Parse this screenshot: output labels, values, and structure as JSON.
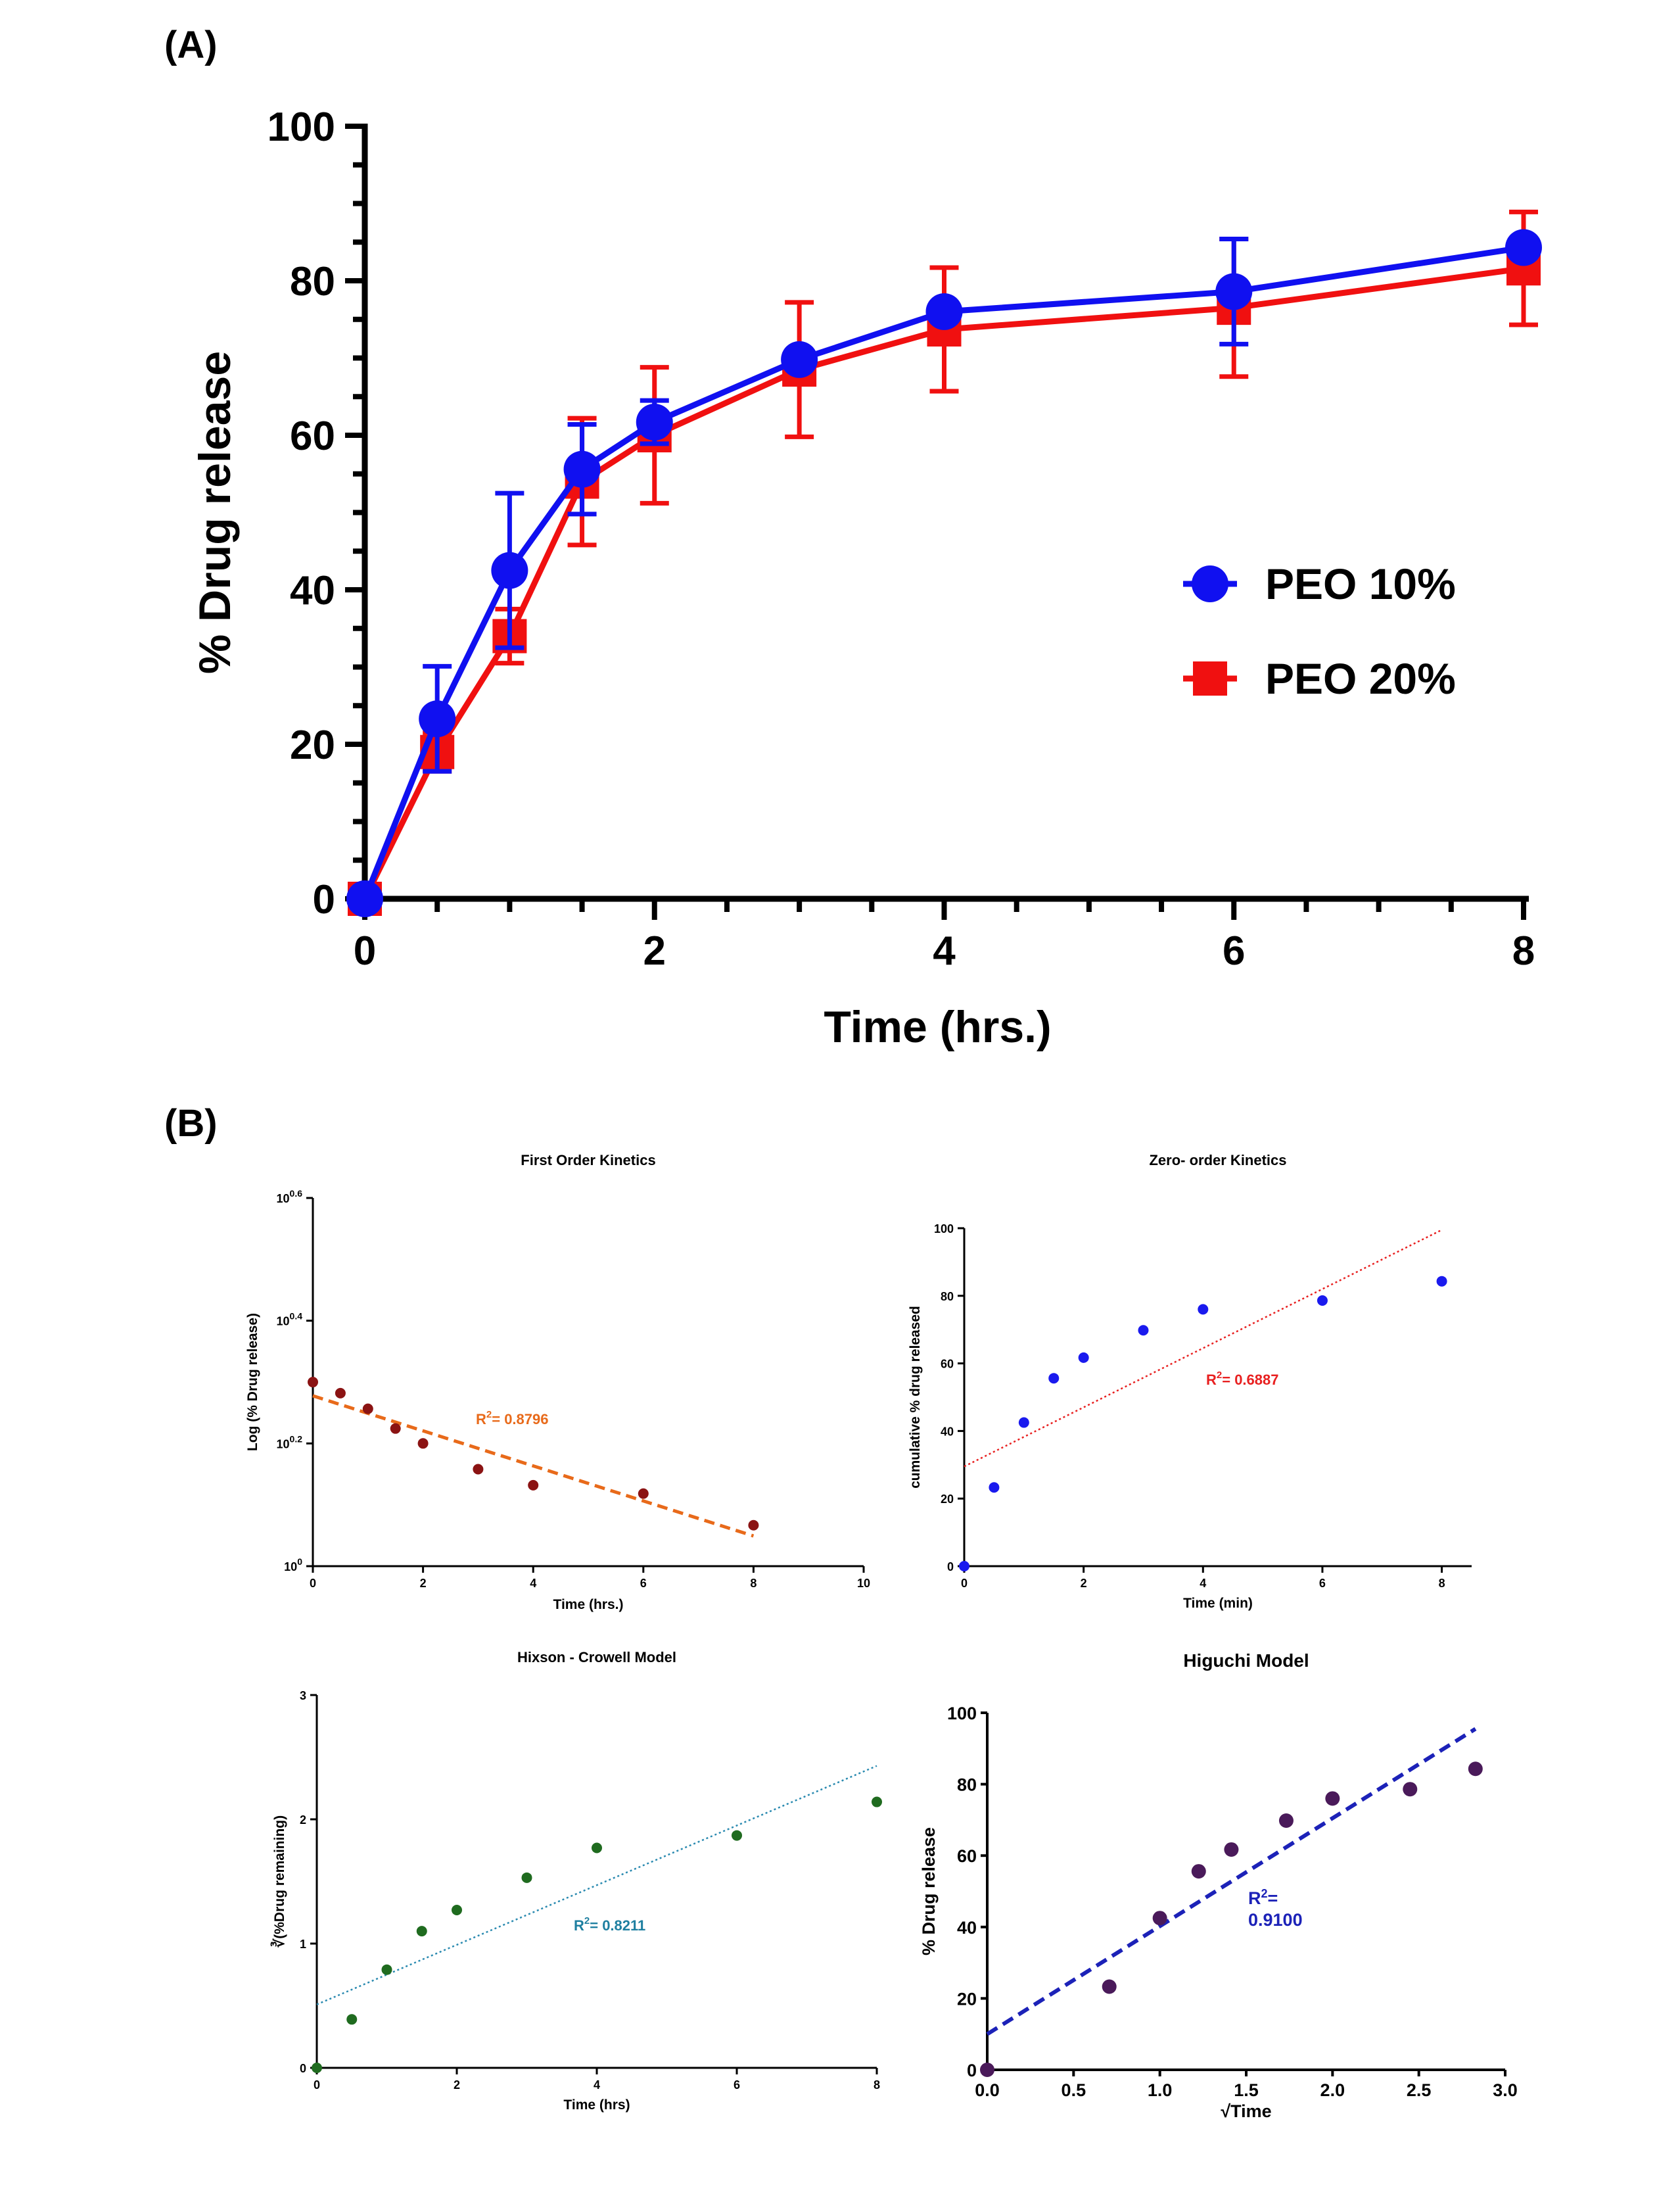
{
  "panel_labels": {
    "a": "(A)",
    "b": "(B)"
  },
  "chart_data": [
    {
      "id": "A",
      "type": "line",
      "xlabel": "Time (hrs.)",
      "ylabel": "% Drug release",
      "xlim": [
        0,
        8
      ],
      "ylim": [
        0,
        100
      ],
      "x_ticks": [
        "0",
        "2",
        "4",
        "6",
        "8"
      ],
      "y_ticks": [
        "0",
        "20",
        "40",
        "60",
        "80",
        "100"
      ],
      "legend_position": "right-middle",
      "x": [
        0,
        0.5,
        1,
        1.5,
        2,
        3,
        4,
        6,
        8
      ],
      "series": [
        {
          "name": "PEO 10%",
          "color": "#1010f0",
          "marker": "circle",
          "values": [
            0,
            23.3,
            42.5,
            55.6,
            61.7,
            69.8,
            76.0,
            78.6,
            84.3
          ],
          "error": [
            0,
            6.8,
            10,
            5.8,
            2.8,
            0,
            0,
            6.8,
            0
          ]
        },
        {
          "name": "PEO 20%",
          "color": "#f01010",
          "marker": "square",
          "values": [
            0,
            19.0,
            34.0,
            54.0,
            60.0,
            68.5,
            73.7,
            76.5,
            81.6
          ],
          "error": [
            0,
            2.5,
            3.5,
            8.2,
            8.8,
            8.7,
            8.0,
            8.9,
            7.3
          ]
        }
      ]
    },
    {
      "id": "B1",
      "type": "scatter",
      "title": "First Order Kinetics",
      "xlabel": "Time (hrs.)",
      "ylabel": "Log (% Drug release)",
      "xlim": [
        0,
        10
      ],
      "ylim_exponent": [
        0,
        0.6
      ],
      "log_y": true,
      "x_ticks": [
        "0",
        "2",
        "4",
        "6",
        "8",
        "10"
      ],
      "y_ticks": [
        {
          "base": "10",
          "exp": "0"
        },
        {
          "base": "10",
          "exp": "0.2"
        },
        {
          "base": "10",
          "exp": "0.4"
        },
        {
          "base": "10",
          "exp": "0.6"
        }
      ],
      "point_color": "#8b1313",
      "points": [
        {
          "x": 0,
          "y": 1.995
        },
        {
          "x": 0.5,
          "y": 1.914
        },
        {
          "x": 1,
          "y": 1.805
        },
        {
          "x": 1.5,
          "y": 1.676
        },
        {
          "x": 2,
          "y": 1.585
        },
        {
          "x": 3,
          "y": 1.439
        },
        {
          "x": 4,
          "y": 1.355
        },
        {
          "x": 6,
          "y": 1.313
        },
        {
          "x": 8,
          "y": 1.166
        }
      ],
      "fit": {
        "x1": 0,
        "y1": 1.895,
        "x2": 8,
        "y2": 1.12,
        "color": "#e86a1a",
        "style": "dashed"
      },
      "r2_label": {
        "prefix": "R",
        "sup": "2",
        "text": "= 0.8796",
        "color": "#e86a1a"
      }
    },
    {
      "id": "B2",
      "type": "scatter",
      "title": "Zero- order Kinetics",
      "xlabel": "Time (min)",
      "ylabel": "cumulative % drug released",
      "xlim": [
        0,
        8.5
      ],
      "ylim": [
        0,
        100
      ],
      "x_ticks": [
        "0",
        "2",
        "4",
        "6",
        "8"
      ],
      "y_ticks": [
        "0",
        "20",
        "40",
        "60",
        "80",
        "100"
      ],
      "point_color": "#1a1aee",
      "points": [
        {
          "x": 0,
          "y": 0
        },
        {
          "x": 0.5,
          "y": 23.3
        },
        {
          "x": 1,
          "y": 42.5
        },
        {
          "x": 1.5,
          "y": 55.6
        },
        {
          "x": 2,
          "y": 61.7
        },
        {
          "x": 3,
          "y": 69.8
        },
        {
          "x": 4,
          "y": 76.0
        },
        {
          "x": 6,
          "y": 78.6
        },
        {
          "x": 8,
          "y": 84.3
        }
      ],
      "fit": {
        "x1": 0,
        "y1": 29.5,
        "x2": 8,
        "y2": 99.5,
        "color": "#e82020",
        "style": "dotted"
      },
      "r2_label": {
        "prefix": "R",
        "sup": "2",
        "text": "= 0.6887",
        "color": "#e82020"
      }
    },
    {
      "id": "B3",
      "type": "scatter",
      "title": "Hixson - Crowell Model",
      "xlabel": "Time (hrs)",
      "ylabel": "∛(%Drug remaining)",
      "xlim": [
        0,
        8
      ],
      "ylim": [
        0,
        3
      ],
      "x_ticks": [
        "0",
        "2",
        "4",
        "6",
        "8"
      ],
      "y_ticks": [
        "0",
        "1",
        "2",
        "3"
      ],
      "point_color": "#1f6b1f",
      "points": [
        {
          "x": 0,
          "y": 0
        },
        {
          "x": 0.5,
          "y": 0.39
        },
        {
          "x": 1,
          "y": 0.79
        },
        {
          "x": 1.5,
          "y": 1.1
        },
        {
          "x": 2,
          "y": 1.27
        },
        {
          "x": 3,
          "y": 1.53
        },
        {
          "x": 4,
          "y": 1.77
        },
        {
          "x": 6,
          "y": 1.87
        },
        {
          "x": 8,
          "y": 2.14
        }
      ],
      "fit": {
        "x1": 0,
        "y1": 0.51,
        "x2": 8,
        "y2": 2.43,
        "color": "#2a8ab0",
        "style": "dotted"
      },
      "r2_label": {
        "prefix": "R",
        "sup": "2",
        "text": "= 0.8211",
        "color": "#1e7fa0"
      }
    },
    {
      "id": "B4",
      "type": "scatter",
      "title": "Higuchi Model",
      "xlabel": "√Time",
      "ylabel": "% Drug release",
      "xlim": [
        0,
        3
      ],
      "ylim": [
        0,
        100
      ],
      "x_ticks": [
        "0.0",
        "0.5",
        "1.0",
        "1.5",
        "2.0",
        "2.5",
        "3.0"
      ],
      "y_ticks": [
        "0",
        "20",
        "40",
        "60",
        "80",
        "100"
      ],
      "point_color": "#4a1a5a",
      "points": [
        {
          "x": 0,
          "y": 0
        },
        {
          "x": 0.707,
          "y": 23.3
        },
        {
          "x": 1,
          "y": 42.5
        },
        {
          "x": 1.225,
          "y": 55.6
        },
        {
          "x": 1.414,
          "y": 61.7
        },
        {
          "x": 1.732,
          "y": 69.8
        },
        {
          "x": 2,
          "y": 76.0
        },
        {
          "x": 2.449,
          "y": 78.6
        },
        {
          "x": 2.828,
          "y": 84.3
        }
      ],
      "fit": {
        "x1": 0,
        "y1": 10,
        "x2": 2.828,
        "y2": 95.5,
        "color": "#1c22b8",
        "style": "dashed"
      },
      "r2_label": {
        "prefix": "R",
        "sup": "2",
        "text": "=",
        "line2": "0.9100",
        "color": "#1c22b8"
      }
    }
  ]
}
